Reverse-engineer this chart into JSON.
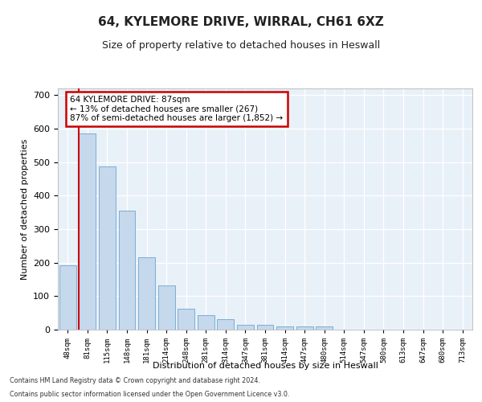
{
  "title": "64, KYLEMORE DRIVE, WIRRAL, CH61 6XZ",
  "subtitle": "Size of property relative to detached houses in Heswall",
  "xlabel": "Distribution of detached houses by size in Heswall",
  "ylabel": "Number of detached properties",
  "footnote1": "Contains HM Land Registry data © Crown copyright and database right 2024.",
  "footnote2": "Contains public sector information licensed under the Open Government Licence v3.0.",
  "categories": [
    "48sqm",
    "81sqm",
    "115sqm",
    "148sqm",
    "181sqm",
    "214sqm",
    "248sqm",
    "281sqm",
    "314sqm",
    "347sqm",
    "381sqm",
    "414sqm",
    "447sqm",
    "480sqm",
    "514sqm",
    "547sqm",
    "580sqm",
    "613sqm",
    "647sqm",
    "680sqm",
    "713sqm"
  ],
  "values": [
    193,
    585,
    487,
    355,
    215,
    132,
    63,
    44,
    31,
    15,
    15,
    9,
    10,
    9,
    0,
    0,
    0,
    0,
    0,
    0,
    0
  ],
  "bar_color": "#c5d8ec",
  "bar_edge_color": "#7bafd4",
  "highlight_line_color": "#cc0000",
  "annotation_line1": "64 KYLEMORE DRIVE: 87sqm",
  "annotation_line2": "← 13% of detached houses are smaller (267)",
  "annotation_line3": "87% of semi-detached houses are larger (1,852) →",
  "annotation_box_color": "#cc0000",
  "ylim": [
    0,
    720
  ],
  "yticks": [
    0,
    100,
    200,
    300,
    400,
    500,
    600,
    700
  ],
  "bg_color": "#e8f0f8",
  "fig_color": "#ffffff",
  "grid_color": "#ffffff",
  "bar_width": 0.85
}
